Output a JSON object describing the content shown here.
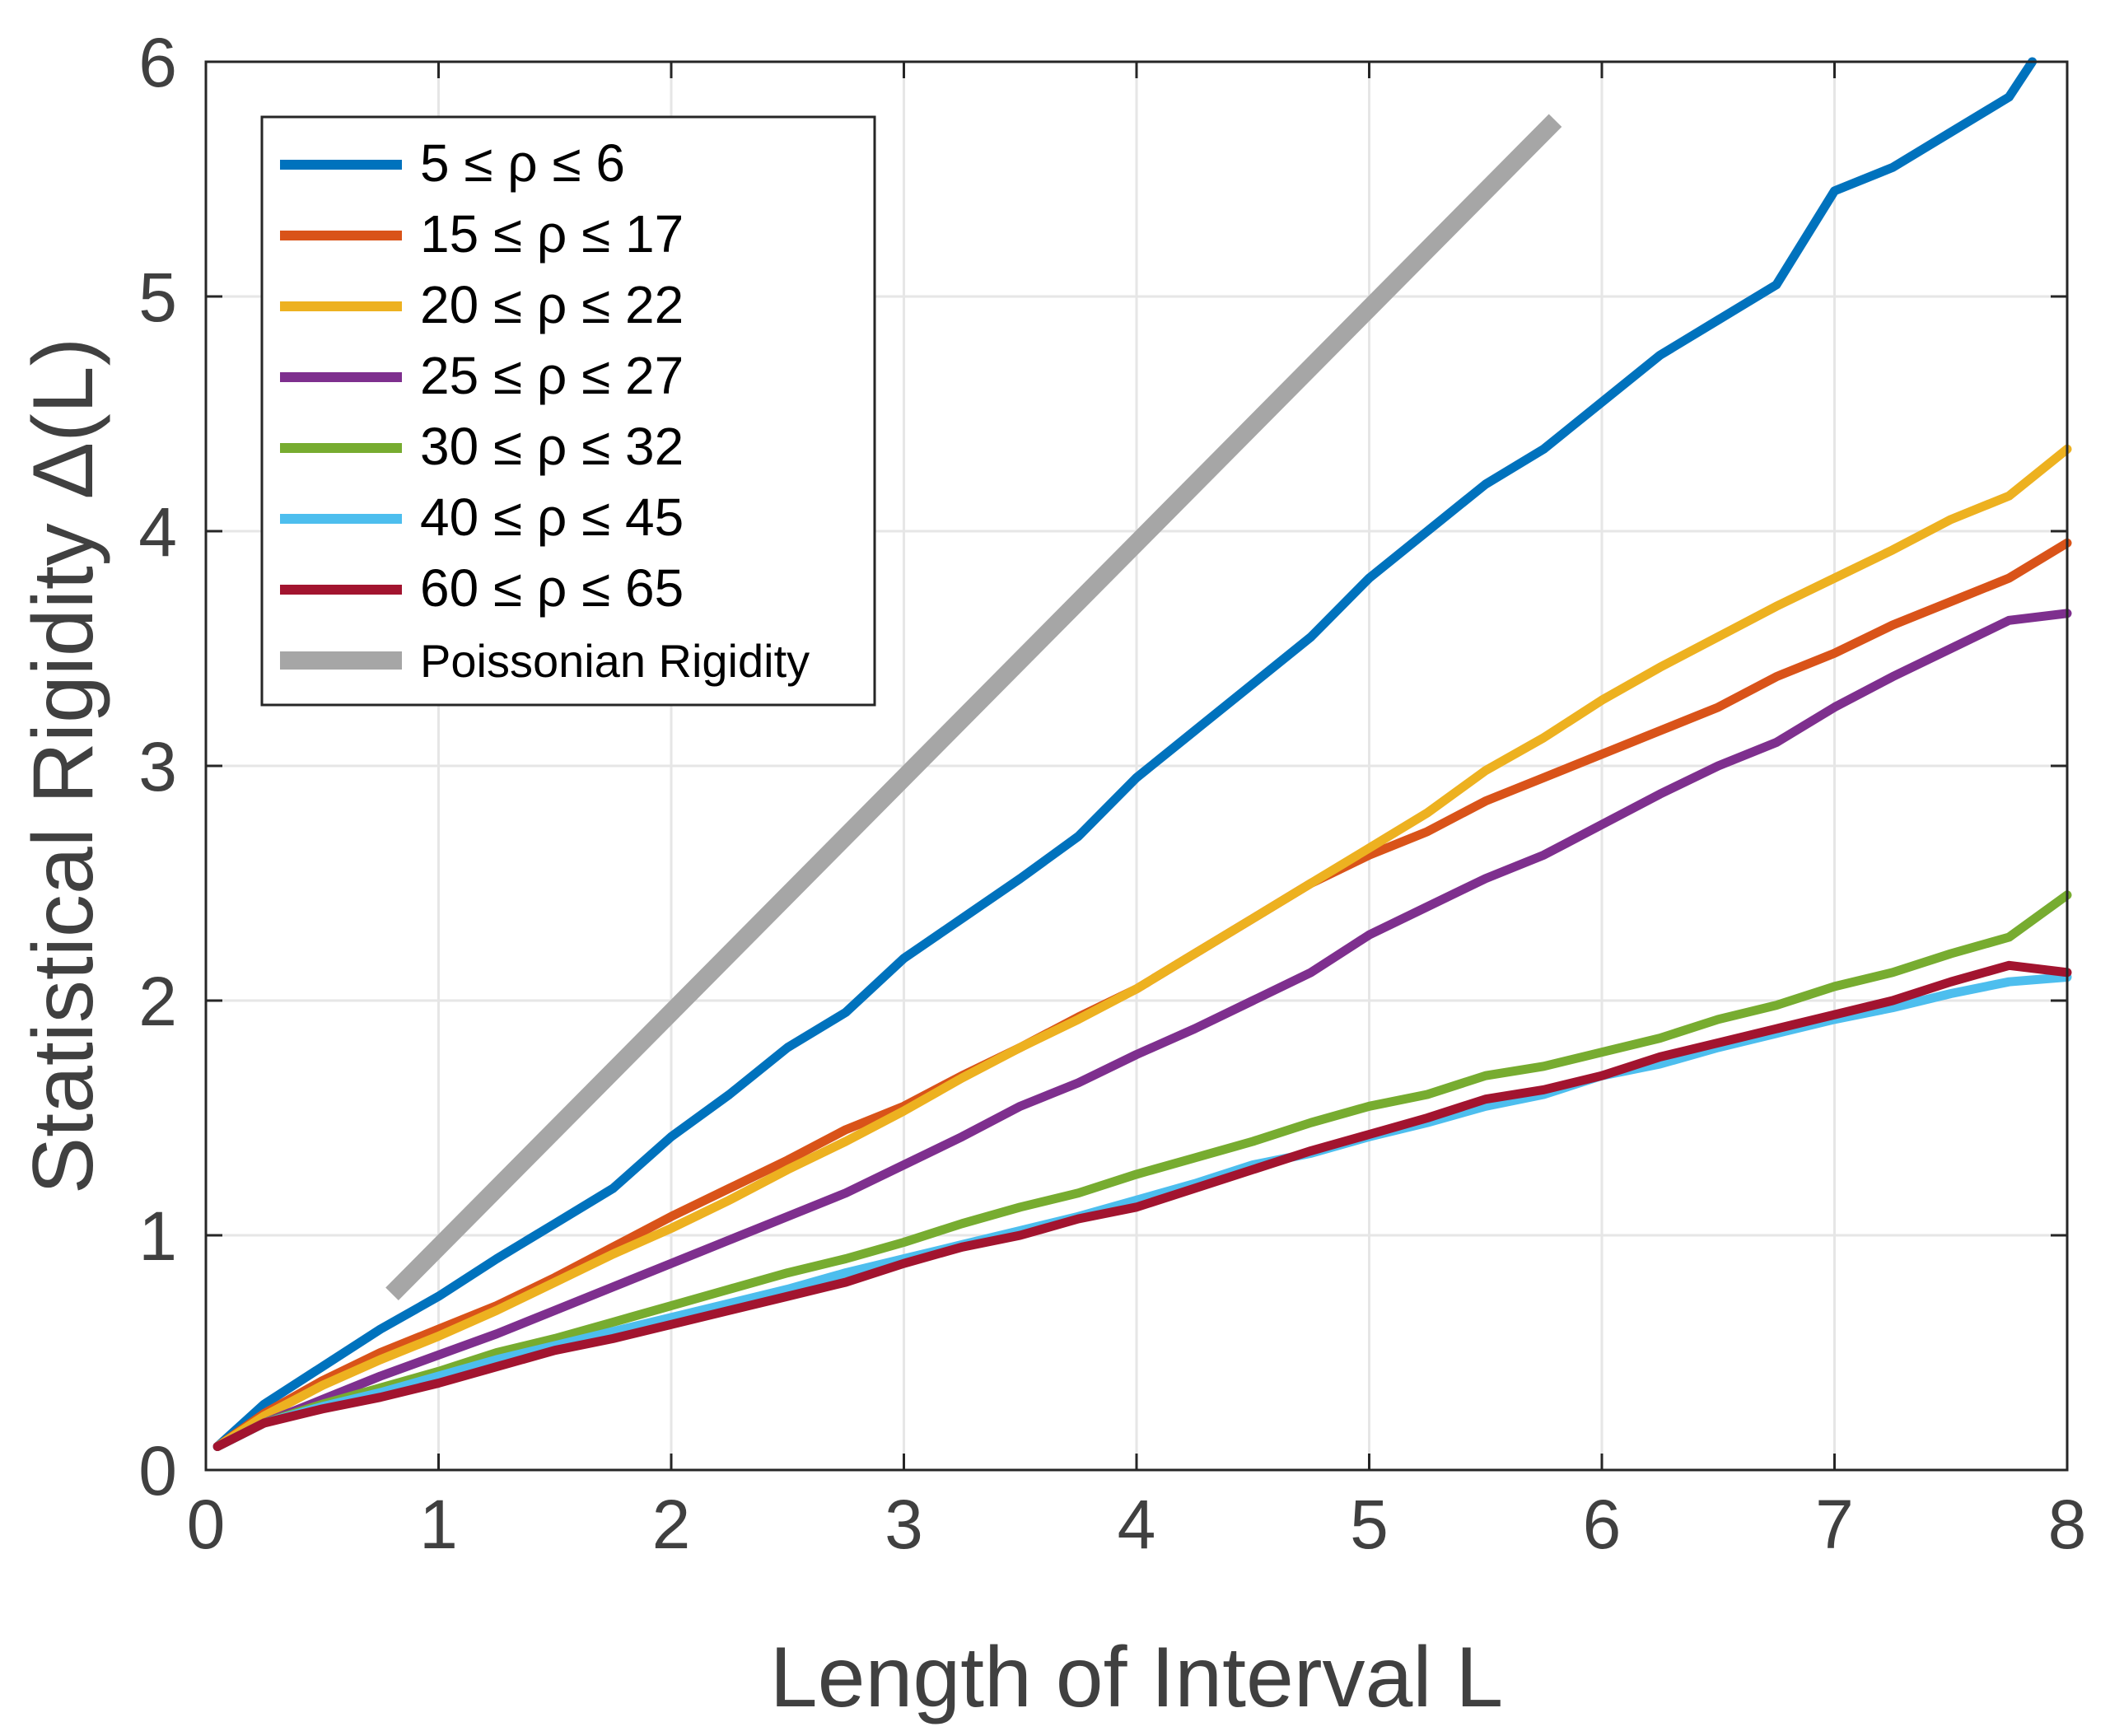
{
  "chart_data": {
    "type": "line",
    "title": "",
    "xlabel": "Length of Interval L",
    "ylabel": "Statistical Rigidity Δ(L)",
    "xlim": [
      0,
      8
    ],
    "ylim": [
      0,
      6
    ],
    "xticks": [
      "0",
      "1",
      "2",
      "3",
      "4",
      "5",
      "6",
      "7",
      "8"
    ],
    "yticks": [
      "0",
      "1",
      "2",
      "3",
      "4",
      "5",
      "6"
    ],
    "grid": true,
    "legend_position": "top-left",
    "series": [
      {
        "name": "5 ≤ ρ ≤ 6",
        "color": "#0072BD",
        "x": [
          0.05,
          0.25,
          0.5,
          0.75,
          1.0,
          1.25,
          1.5,
          1.75,
          2.0,
          2.25,
          2.5,
          2.75,
          3.0,
          3.25,
          3.5,
          3.75,
          4.0,
          4.25,
          4.5,
          4.75,
          5.0,
          5.25,
          5.5,
          5.75,
          6.0,
          6.25,
          6.5,
          6.75,
          7.0,
          7.25,
          7.5,
          7.75,
          7.85
        ],
        "y": [
          0.1,
          0.28,
          0.44,
          0.6,
          0.74,
          0.9,
          1.05,
          1.2,
          1.42,
          1.6,
          1.8,
          1.95,
          2.18,
          2.35,
          2.52,
          2.7,
          2.95,
          3.15,
          3.35,
          3.55,
          3.8,
          4.0,
          4.2,
          4.35,
          4.55,
          4.75,
          4.9,
          5.05,
          5.45,
          5.55,
          5.7,
          5.85,
          6.0
        ]
      },
      {
        "name": "15 ≤ ρ ≤ 17",
        "color": "#D95319",
        "x": [
          0.05,
          0.25,
          0.5,
          0.75,
          1.0,
          1.25,
          1.5,
          1.75,
          2.0,
          2.25,
          2.5,
          2.75,
          3.0,
          3.25,
          3.5,
          3.75,
          4.0,
          4.25,
          4.5,
          4.75,
          5.0,
          5.25,
          5.5,
          5.75,
          6.0,
          6.25,
          6.5,
          6.75,
          7.0,
          7.25,
          7.5,
          7.75,
          8.0
        ],
        "y": [
          0.1,
          0.24,
          0.38,
          0.5,
          0.6,
          0.7,
          0.82,
          0.95,
          1.08,
          1.2,
          1.32,
          1.45,
          1.55,
          1.68,
          1.8,
          1.93,
          2.05,
          2.2,
          2.35,
          2.5,
          2.62,
          2.72,
          2.85,
          2.95,
          3.05,
          3.15,
          3.25,
          3.38,
          3.48,
          3.6,
          3.7,
          3.8,
          3.95
        ]
      },
      {
        "name": "20 ≤ ρ ≤ 22",
        "color": "#EDB120",
        "x": [
          0.05,
          0.25,
          0.5,
          0.75,
          1.0,
          1.25,
          1.5,
          1.75,
          2.0,
          2.25,
          2.5,
          2.75,
          3.0,
          3.25,
          3.5,
          3.75,
          4.0,
          4.25,
          4.5,
          4.75,
          5.0,
          5.25,
          5.5,
          5.75,
          6.0,
          6.25,
          6.5,
          6.75,
          7.0,
          7.25,
          7.5,
          7.75,
          8.0
        ],
        "y": [
          0.1,
          0.23,
          0.36,
          0.47,
          0.57,
          0.68,
          0.8,
          0.92,
          1.03,
          1.15,
          1.28,
          1.4,
          1.53,
          1.67,
          1.8,
          1.92,
          2.05,
          2.2,
          2.35,
          2.5,
          2.65,
          2.8,
          2.98,
          3.12,
          3.28,
          3.42,
          3.55,
          3.68,
          3.8,
          3.92,
          4.05,
          4.15,
          4.35
        ]
      },
      {
        "name": "25 ≤ ρ ≤ 27",
        "color": "#7E2F8E",
        "x": [
          0.05,
          0.25,
          0.5,
          0.75,
          1.0,
          1.25,
          1.5,
          1.75,
          2.0,
          2.25,
          2.5,
          2.75,
          3.0,
          3.25,
          3.5,
          3.75,
          4.0,
          4.25,
          4.5,
          4.75,
          5.0,
          5.25,
          5.5,
          5.75,
          6.0,
          6.25,
          6.5,
          6.75,
          7.0,
          7.25,
          7.5,
          7.75,
          8.0
        ],
        "y": [
          0.1,
          0.2,
          0.3,
          0.4,
          0.49,
          0.58,
          0.68,
          0.78,
          0.88,
          0.98,
          1.08,
          1.18,
          1.3,
          1.42,
          1.55,
          1.65,
          1.77,
          1.88,
          2.0,
          2.12,
          2.28,
          2.4,
          2.52,
          2.62,
          2.75,
          2.88,
          3.0,
          3.1,
          3.25,
          3.38,
          3.5,
          3.62,
          3.65
        ]
      },
      {
        "name": "30 ≤ ρ ≤ 32",
        "color": "#77AC30",
        "x": [
          0.05,
          0.25,
          0.5,
          0.75,
          1.0,
          1.25,
          1.5,
          1.75,
          2.0,
          2.25,
          2.5,
          2.75,
          3.0,
          3.25,
          3.5,
          3.75,
          4.0,
          4.25,
          4.5,
          4.75,
          5.0,
          5.25,
          5.5,
          5.75,
          6.0,
          6.25,
          6.5,
          6.75,
          7.0,
          7.25,
          7.5,
          7.75,
          8.0
        ],
        "y": [
          0.1,
          0.2,
          0.28,
          0.35,
          0.42,
          0.5,
          0.56,
          0.63,
          0.7,
          0.77,
          0.84,
          0.9,
          0.97,
          1.05,
          1.12,
          1.18,
          1.26,
          1.33,
          1.4,
          1.48,
          1.55,
          1.6,
          1.68,
          1.72,
          1.78,
          1.84,
          1.92,
          1.98,
          2.06,
          2.12,
          2.2,
          2.27,
          2.45
        ]
      },
      {
        "name": "40 ≤ ρ ≤ 45",
        "color": "#4DBEEE",
        "x": [
          0.05,
          0.25,
          0.5,
          0.75,
          1.0,
          1.25,
          1.5,
          1.75,
          2.0,
          2.25,
          2.5,
          2.75,
          3.0,
          3.25,
          3.5,
          3.75,
          4.0,
          4.25,
          4.5,
          4.75,
          5.0,
          5.25,
          5.5,
          5.75,
          6.0,
          6.25,
          6.5,
          6.75,
          7.0,
          7.25,
          7.5,
          7.75,
          8.0
        ],
        "y": [
          0.1,
          0.2,
          0.27,
          0.33,
          0.4,
          0.47,
          0.53,
          0.59,
          0.65,
          0.71,
          0.77,
          0.84,
          0.9,
          0.96,
          1.02,
          1.08,
          1.15,
          1.22,
          1.3,
          1.35,
          1.42,
          1.48,
          1.55,
          1.6,
          1.68,
          1.73,
          1.8,
          1.86,
          1.92,
          1.97,
          2.03,
          2.08,
          2.1
        ]
      },
      {
        "name": "60 ≤ ρ ≤ 65",
        "color": "#A2142F",
        "x": [
          0.05,
          0.25,
          0.5,
          0.75,
          1.0,
          1.25,
          1.5,
          1.75,
          2.0,
          2.25,
          2.5,
          2.75,
          3.0,
          3.25,
          3.5,
          3.75,
          4.0,
          4.25,
          4.5,
          4.75,
          5.0,
          5.25,
          5.5,
          5.75,
          6.0,
          6.25,
          6.5,
          6.75,
          7.0,
          7.25,
          7.5,
          7.75,
          8.0
        ],
        "y": [
          0.1,
          0.2,
          0.26,
          0.31,
          0.37,
          0.44,
          0.51,
          0.56,
          0.62,
          0.68,
          0.74,
          0.8,
          0.88,
          0.95,
          1.0,
          1.07,
          1.12,
          1.2,
          1.28,
          1.36,
          1.43,
          1.5,
          1.58,
          1.62,
          1.68,
          1.76,
          1.82,
          1.88,
          1.94,
          2.0,
          2.08,
          2.15,
          2.12
        ]
      },
      {
        "name": "Poissonian Rigidity",
        "color": "#A6A6A6",
        "x": [
          0.8,
          5.8
        ],
        "y": [
          0.75,
          5.75
        ]
      }
    ]
  }
}
